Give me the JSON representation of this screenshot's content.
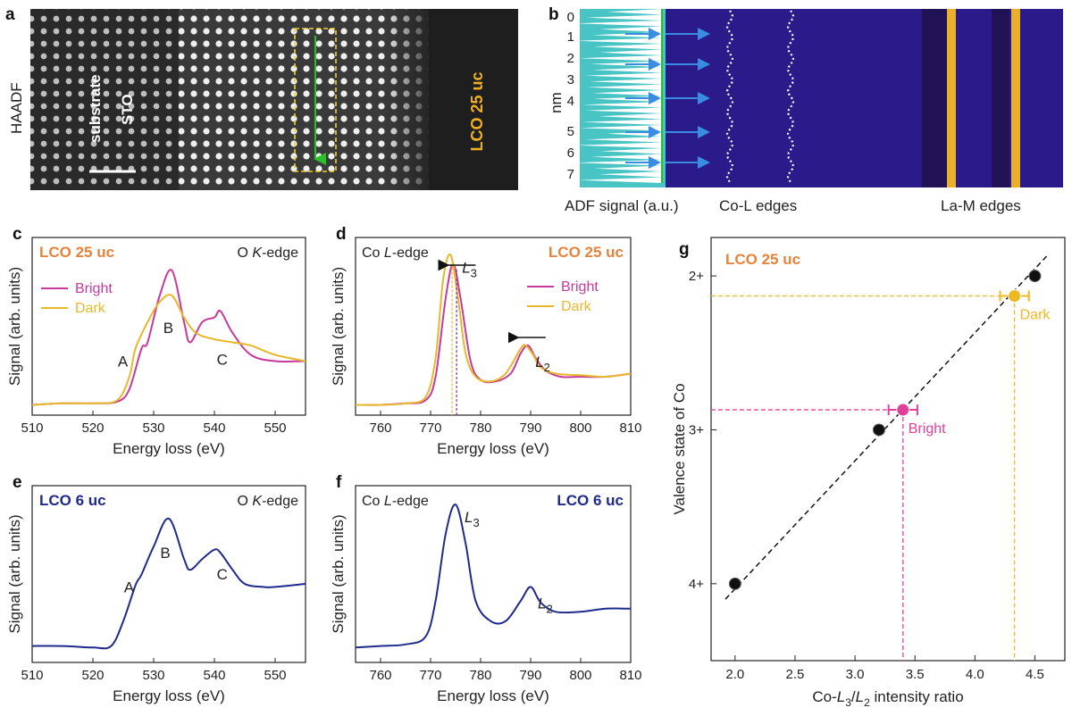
{
  "colors": {
    "bright": "#c8399c",
    "dark": "#e8b82a",
    "lco6": "#1e2a8c",
    "orange": "#e8823a",
    "fit": "#111111",
    "cyan": "#48c4c4"
  },
  "panel_a": {
    "letter": "a",
    "haadf": "HAADF",
    "sto_1": "STO",
    "sto_2": "substrate",
    "lco": "LCO 25 uc"
  },
  "panel_b": {
    "letter": "b",
    "ylabel": "nm",
    "yticks": [
      "0",
      "1",
      "2",
      "3",
      "4",
      "5",
      "6",
      "7"
    ],
    "adf": "ADF signal (a.u.)",
    "col": "Co-L edges",
    "lam": "La-M edges"
  },
  "chart_data": [
    {
      "id": "c",
      "type": "line",
      "letter": "c",
      "header": "LCO 25 uc",
      "edge": "O K-edge",
      "xlabel": "Energy loss (eV)",
      "ylabel": "Signal (arb. units)",
      "xlim": [
        510,
        555
      ],
      "xticks": [
        "510",
        "520",
        "530",
        "540",
        "550"
      ],
      "peaks": [
        "A",
        "B",
        "C"
      ],
      "series": [
        {
          "name": "Bright",
          "color": "#c8399c",
          "x": [
            510,
            515,
            520,
            524,
            526,
            528,
            529,
            531,
            533,
            535,
            536,
            538,
            540,
            541,
            543,
            546,
            550,
            555
          ],
          "y": [
            0.02,
            0.03,
            0.03,
            0.04,
            0.12,
            0.38,
            0.42,
            0.72,
            0.88,
            0.55,
            0.42,
            0.55,
            0.58,
            0.62,
            0.48,
            0.34,
            0.3,
            0.3
          ]
        },
        {
          "name": "Dark",
          "color": "#e8b82a",
          "x": [
            510,
            515,
            520,
            524,
            526,
            527,
            529,
            531,
            533,
            535,
            537,
            540,
            543,
            546,
            550,
            555
          ],
          "y": [
            0.02,
            0.03,
            0.03,
            0.05,
            0.2,
            0.38,
            0.55,
            0.68,
            0.72,
            0.58,
            0.48,
            0.44,
            0.42,
            0.4,
            0.34,
            0.3
          ]
        }
      ]
    },
    {
      "id": "d",
      "type": "line",
      "letter": "d",
      "header": "LCO 25 uc",
      "edge": "Co L-edge",
      "xlabel": "Energy loss (eV)",
      "ylabel": "Signal (arb. units)",
      "xlim": [
        755,
        810
      ],
      "xticks": [
        "760",
        "770",
        "780",
        "790",
        "800",
        "810"
      ],
      "peaks": [
        "L3",
        "L2"
      ],
      "series": [
        {
          "name": "Bright",
          "color": "#c8399c",
          "x": [
            755,
            760,
            765,
            769,
            771,
            773,
            774.5,
            776,
            778,
            780,
            783,
            786,
            788,
            789.5,
            791,
            793,
            796,
            800,
            805,
            810
          ],
          "y": [
            0.02,
            0.02,
            0.03,
            0.05,
            0.2,
            0.7,
            0.92,
            0.7,
            0.3,
            0.18,
            0.17,
            0.22,
            0.35,
            0.4,
            0.32,
            0.24,
            0.2,
            0.2,
            0.2,
            0.22
          ]
        },
        {
          "name": "Dark",
          "color": "#e8b82a",
          "x": [
            755,
            760,
            765,
            769,
            771,
            772.5,
            774,
            775.5,
            777,
            779,
            782,
            785,
            788,
            789,
            790.5,
            792,
            795,
            800,
            805,
            810
          ],
          "y": [
            0.02,
            0.02,
            0.03,
            0.07,
            0.32,
            0.82,
            0.98,
            0.7,
            0.35,
            0.2,
            0.17,
            0.22,
            0.38,
            0.4,
            0.34,
            0.26,
            0.22,
            0.21,
            0.2,
            0.22
          ]
        }
      ]
    },
    {
      "id": "e",
      "type": "line",
      "letter": "e",
      "header": "LCO 6 uc",
      "edge": "O K-edge",
      "xlabel": "Energy loss (eV)",
      "ylabel": "Signal (arb. units)",
      "xlim": [
        510,
        555
      ],
      "xticks": [
        "510",
        "520",
        "530",
        "540",
        "550"
      ],
      "peaks": [
        "A",
        "B",
        "C"
      ],
      "series": [
        {
          "name": "LCO 6 uc",
          "color": "#1e2a8c",
          "x": [
            510,
            515,
            520,
            523,
            525,
            527,
            528,
            530,
            532.5,
            535,
            536,
            538,
            540,
            541,
            543,
            545,
            548,
            550,
            555
          ],
          "y": [
            0.06,
            0.06,
            0.05,
            0.06,
            0.22,
            0.45,
            0.52,
            0.7,
            0.88,
            0.62,
            0.55,
            0.62,
            0.68,
            0.66,
            0.55,
            0.46,
            0.44,
            0.44,
            0.46
          ]
        }
      ]
    },
    {
      "id": "f",
      "type": "line",
      "letter": "f",
      "header": "LCO 6 uc",
      "edge": "Co L-edge",
      "xlabel": "Energy loss (eV)",
      "ylabel": "Signal (arb. units)",
      "xlim": [
        755,
        810
      ],
      "xticks": [
        "760",
        "770",
        "780",
        "790",
        "800",
        "810"
      ],
      "peaks": [
        "L3",
        "L2"
      ],
      "series": [
        {
          "name": "LCO 6 uc",
          "color": "#1e2a8c",
          "x": [
            755,
            760,
            765,
            769,
            771,
            773,
            775,
            777,
            779,
            782,
            785,
            788,
            790,
            792,
            795,
            800,
            805,
            810
          ],
          "y": [
            0.05,
            0.06,
            0.07,
            0.12,
            0.35,
            0.78,
            0.97,
            0.72,
            0.35,
            0.22,
            0.22,
            0.35,
            0.44,
            0.34,
            0.28,
            0.28,
            0.3,
            0.3
          ]
        }
      ]
    },
    {
      "id": "g",
      "type": "scatter",
      "letter": "g",
      "header": "LCO 25 uc",
      "xlabel": "Co-L3/L2 intensity ratio",
      "ylabel": "Valence state of Co",
      "xlim": [
        1.8,
        4.75
      ],
      "ylim": [
        1.75,
        4.5
      ],
      "xticks": [
        "2.0",
        "2.5",
        "3.0",
        "3.5",
        "4.0",
        "4.5"
      ],
      "yticks": [
        "2+",
        "3+",
        "4+"
      ],
      "reference": [
        {
          "x": 2.0,
          "y": 4.0
        },
        {
          "x": 3.2,
          "y": 3.0
        },
        {
          "x": 4.5,
          "y": 2.0
        }
      ],
      "fit": {
        "x": [
          1.92,
          4.6
        ],
        "y": [
          4.1,
          1.87
        ]
      },
      "measured": [
        {
          "name": "Bright",
          "x": 3.4,
          "y": 2.87,
          "xerr": 0.12,
          "color": "#e0409a"
        },
        {
          "name": "Dark",
          "x": 4.33,
          "y": 2.13,
          "xerr": 0.12,
          "color": "#f0b820"
        }
      ]
    }
  ]
}
